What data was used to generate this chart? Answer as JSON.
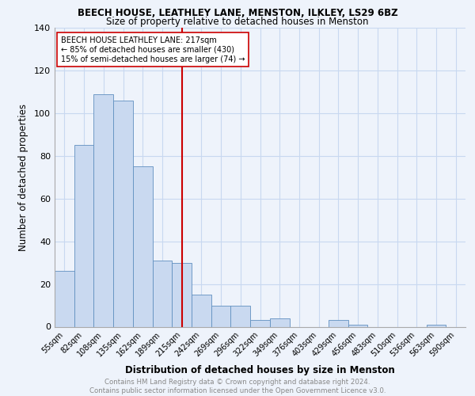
{
  "title1": "BEECH HOUSE, LEATHLEY LANE, MENSTON, ILKLEY, LS29 6BZ",
  "title2": "Size of property relative to detached houses in Menston",
  "xlabel": "Distribution of detached houses by size in Menston",
  "ylabel": "Number of detached properties",
  "footer": "Contains HM Land Registry data © Crown copyright and database right 2024.\nContains public sector information licensed under the Open Government Licence v3.0.",
  "bin_labels": [
    "55sqm",
    "82sqm",
    "108sqm",
    "135sqm",
    "162sqm",
    "189sqm",
    "215sqm",
    "242sqm",
    "269sqm",
    "296sqm",
    "322sqm",
    "349sqm",
    "376sqm",
    "403sqm",
    "429sqm",
    "456sqm",
    "483sqm",
    "510sqm",
    "536sqm",
    "563sqm",
    "590sqm"
  ],
  "bar_heights": [
    26,
    85,
    109,
    106,
    75,
    31,
    30,
    15,
    10,
    10,
    3,
    4,
    0,
    0,
    3,
    1,
    0,
    0,
    0,
    1,
    0
  ],
  "bar_color": "#c9d9f0",
  "bar_edge_color": "#6090c0",
  "grid_color": "#c8d8f0",
  "vline_color": "#cc0000",
  "annotation_text": "BEECH HOUSE LEATHLEY LANE: 217sqm\n← 85% of detached houses are smaller (430)\n15% of semi-detached houses are larger (74) →",
  "annotation_box_color": "#ffffff",
  "annotation_box_edge": "#cc0000",
  "bg_color": "#eef3fb",
  "yticks": [
    0,
    20,
    40,
    60,
    80,
    100,
    120,
    140
  ],
  "ylim": [
    0,
    140
  ],
  "vline_index": 6
}
